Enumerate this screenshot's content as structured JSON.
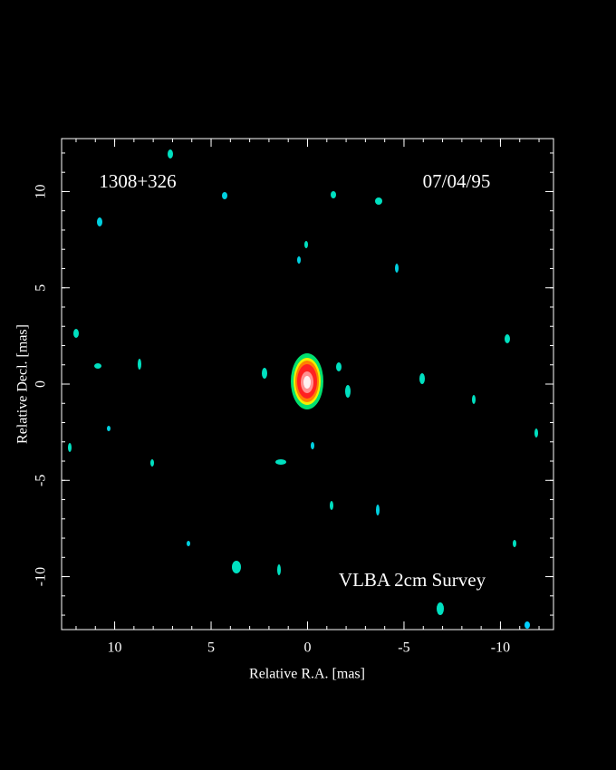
{
  "chart_data": {
    "type": "map",
    "source": "1308+326",
    "date": "07/04/95",
    "survey": "VLBA 2cm Survey",
    "x_label": "Relative R.A. [mas]",
    "y_label": "Relative Decl. [mas]",
    "xlim": [
      12.75,
      -12.75
    ],
    "ylim": [
      -12.75,
      12.75
    ],
    "xticks": [
      10,
      5,
      0,
      -5,
      -10
    ],
    "yticks": [
      -10,
      -5,
      0,
      5,
      10
    ]
  }
}
